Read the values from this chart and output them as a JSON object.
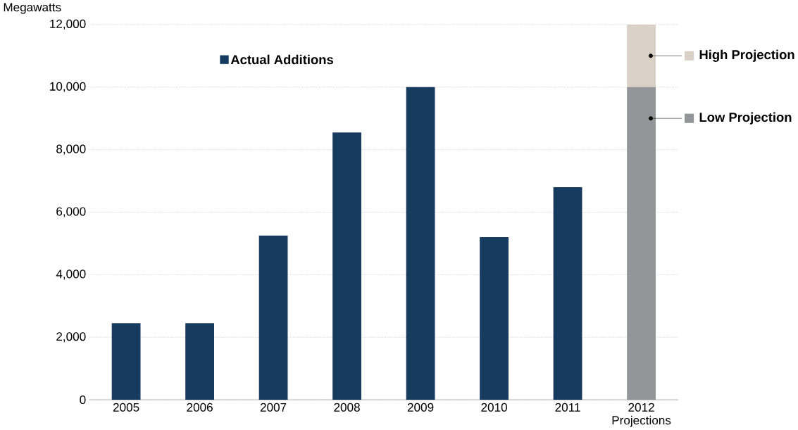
{
  "chart_data": {
    "type": "bar",
    "stacked": true,
    "ylabel": "Megawatts",
    "categories": [
      "2005",
      "2006",
      "2007",
      "2008",
      "2009",
      "2010",
      "2011",
      "2012 Projections"
    ],
    "series": [
      {
        "name": "Actual Additions",
        "color": "#163b5e",
        "values": [
          2450,
          2450,
          5250,
          8550,
          10000,
          5200,
          6800,
          null
        ]
      },
      {
        "name": "Low Projection",
        "color": "#939598",
        "values": [
          null,
          null,
          null,
          null,
          null,
          null,
          null,
          10000
        ]
      },
      {
        "name": "High Projection",
        "color": "#d9d1c5",
        "values": [
          null,
          null,
          null,
          null,
          null,
          null,
          null,
          2000
        ]
      }
    ],
    "ylim": [
      0,
      12000
    ],
    "yticks": [
      0,
      {
        "value": 2000,
        "label": "2,000"
      },
      {
        "value": 4000,
        "label": "4,000"
      },
      {
        "value": 6000,
        "label": "6,000"
      },
      {
        "value": 8000,
        "label": "8,000"
      },
      {
        "value": 10000,
        "label": "10,000"
      },
      {
        "value": 12000,
        "label": "12,000"
      }
    ],
    "grid": "y",
    "legend": "top"
  }
}
